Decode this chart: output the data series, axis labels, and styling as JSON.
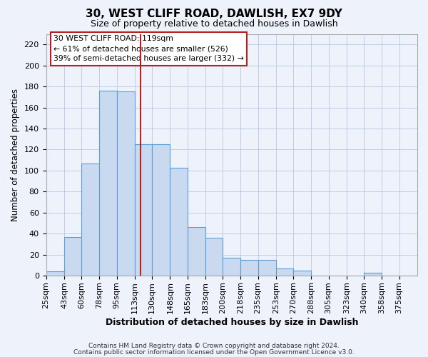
{
  "title": "30, WEST CLIFF ROAD, DAWLISH, EX7 9DY",
  "subtitle": "Size of property relative to detached houses in Dawlish",
  "xlabel": "Distribution of detached houses by size in Dawlish",
  "ylabel": "Number of detached properties",
  "bar_heights": [
    4,
    37,
    107,
    176,
    175,
    125,
    125,
    103,
    46,
    36,
    17,
    15,
    15,
    7,
    5,
    0,
    0,
    0,
    3,
    0,
    0
  ],
  "bin_edges": [
    25,
    43,
    60,
    78,
    95,
    113,
    130,
    148,
    165,
    183,
    200,
    218,
    235,
    253,
    270,
    288,
    305,
    323,
    340,
    358,
    375,
    393
  ],
  "tick_labels": [
    "25sqm",
    "43sqm",
    "60sqm",
    "78sqm",
    "95sqm",
    "113sqm",
    "130sqm",
    "148sqm",
    "165sqm",
    "183sqm",
    "200sqm",
    "218sqm",
    "235sqm",
    "253sqm",
    "270sqm",
    "288sqm",
    "305sqm",
    "323sqm",
    "340sqm",
    "358sqm",
    "375sqm"
  ],
  "bar_color": "#c9d9f0",
  "bar_edge_color": "#5a9fd4",
  "property_value": 119,
  "red_line_color": "#b22222",
  "ann_line1": "30 WEST CLIFF ROAD: 119sqm",
  "ann_line2": "← 61% of detached houses are smaller (526)",
  "ann_line3": "39% of semi-detached houses are larger (332) →",
  "ylim": [
    0,
    230
  ],
  "yticks": [
    0,
    20,
    40,
    60,
    80,
    100,
    120,
    140,
    160,
    180,
    200,
    220
  ],
  "footer_line1": "Contains HM Land Registry data © Crown copyright and database right 2024.",
  "footer_line2": "Contains public sector information licensed under the Open Government Licence v3.0.",
  "bg_color": "#eef2fb",
  "grid_color": "#b8c8e8"
}
